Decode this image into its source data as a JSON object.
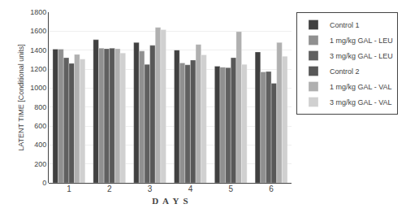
{
  "chart_data": {
    "type": "bar",
    "xlabel": "D  A  Y  S",
    "ylabel": "LATENT TIME [Conditional units]",
    "categories": [
      "1",
      "2",
      "3",
      "4",
      "5",
      "6"
    ],
    "series": [
      {
        "name": "Control 1",
        "color": "#404040",
        "values": [
          1410,
          1510,
          1480,
          1400,
          1230,
          1380
        ]
      },
      {
        "name": "1 mg/kg GAL - LEU",
        "color": "#909090",
        "values": [
          1410,
          1420,
          1390,
          1265,
          1220,
          1170
        ]
      },
      {
        "name": "3 mg/kg GAL - LEU",
        "color": "#606060",
        "values": [
          1320,
          1415,
          1250,
          1245,
          1215,
          1175
        ]
      },
      {
        "name": "Control 2",
        "color": "#585858",
        "values": [
          1260,
          1420,
          1450,
          1295,
          1320,
          1050
        ]
      },
      {
        "name": "1 mg/kg GAL - VAL",
        "color": "#B0B0B0",
        "values": [
          1355,
          1415,
          1640,
          1460,
          1595,
          1480
        ]
      },
      {
        "name": "3 mg/kg GAL - VAL",
        "color": "#D0D0D0",
        "values": [
          1305,
          1370,
          1615,
          1350,
          1250,
          1335
        ]
      }
    ],
    "ylim": [
      0,
      1800
    ],
    "yticks": [
      0,
      200,
      400,
      600,
      800,
      1000,
      1200,
      1400,
      1600,
      1800
    ],
    "grid": true,
    "legend": "upper right"
  }
}
